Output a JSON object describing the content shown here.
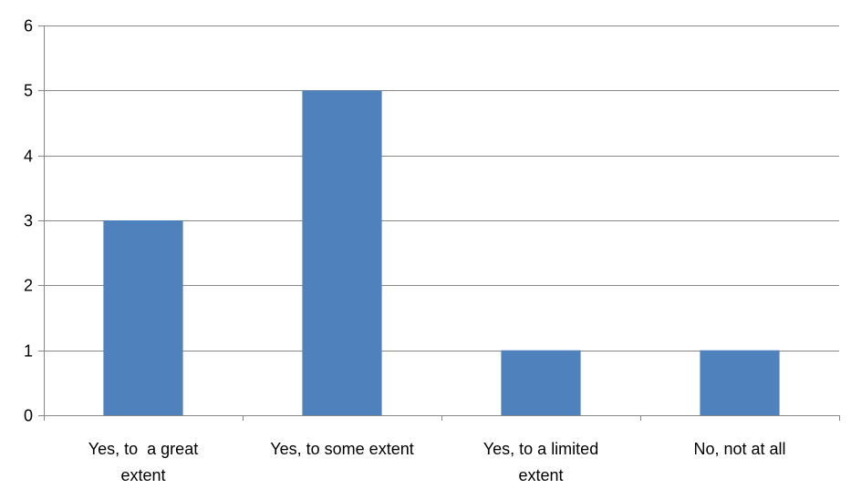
{
  "chart_data": {
    "type": "bar",
    "title": "",
    "xlabel": "",
    "ylabel": "",
    "categories": [
      [
        "Yes, to  a great",
        "extent"
      ],
      [
        "Yes, to some extent"
      ],
      [
        "Yes, to a limited",
        "extent"
      ],
      [
        "No, not at all"
      ]
    ],
    "values": [
      3,
      5,
      1,
      1
    ],
    "ylim": [
      0,
      6
    ],
    "yticks": [
      0,
      1,
      2,
      3,
      4,
      5,
      6
    ],
    "grid": true,
    "legend": "none",
    "bar_color": "#4f81bd",
    "grid_color": "#868686",
    "axis_color": "#868686"
  }
}
